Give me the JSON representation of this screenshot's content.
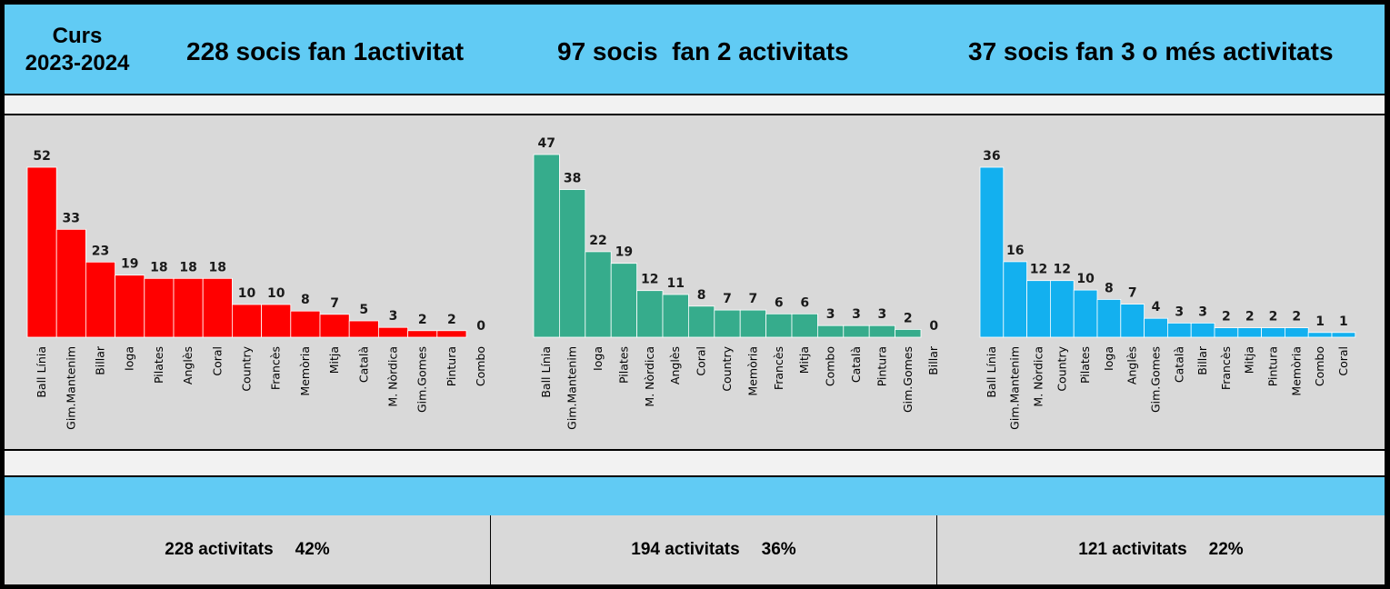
{
  "header": {
    "course_line1": "Curs",
    "course_line2": "2023-2024",
    "group1": "228 socis fan 1activitat",
    "group2": "97 socis  fan 2 activitats",
    "group3": "37 socis fan 3 o més activitats"
  },
  "chart_data": [
    {
      "type": "bar",
      "color": "#ff0000",
      "categories": [
        "Ball Línia",
        "Gim.Mantenim",
        "Billar",
        "Ioga",
        "Pilates",
        "Anglès",
        "Coral",
        "Country",
        "Francès",
        "Memòria",
        "Mitja",
        "Català",
        "M. Nòrdica",
        "Gim.Gomes",
        "Pintura",
        "Combo"
      ],
      "values": [
        52,
        33,
        23,
        19,
        18,
        18,
        18,
        10,
        10,
        8,
        7,
        5,
        3,
        2,
        2,
        0
      ]
    },
    {
      "type": "bar",
      "color": "#36ac8c",
      "categories": [
        "Ball Línia",
        "Gim.Mantenim",
        "Ioga",
        "Pilates",
        "M. Nòrdica",
        "Anglès",
        "Coral",
        "Country",
        "Memòria",
        "Francès",
        "Mitja",
        "Combo",
        "Català",
        "Pintura",
        "Gim.Gomes",
        "Billar"
      ],
      "values": [
        47,
        38,
        22,
        19,
        12,
        11,
        8,
        7,
        7,
        6,
        6,
        3,
        3,
        3,
        2,
        0
      ]
    },
    {
      "type": "bar",
      "color": "#13b0ef",
      "categories": [
        "Ball Línia",
        "Gim.Mantenim",
        "M. Nòrdica",
        "Country",
        "Pilates",
        "Ioga",
        "Anglès",
        "Gim.Gomes",
        "Català",
        "Billar",
        "Francès",
        "Mitja",
        "Pintura",
        "Memòria",
        "Combo",
        "Coral"
      ],
      "values": [
        36,
        16,
        12,
        12,
        10,
        8,
        7,
        4,
        3,
        3,
        2,
        2,
        2,
        2,
        1,
        1
      ]
    }
  ],
  "totals": [
    {
      "label": "228 activitats",
      "pct": "42%"
    },
    {
      "label": "194 activitats",
      "pct": "36%"
    },
    {
      "label": "121 activitats",
      "pct": "22%"
    }
  ]
}
